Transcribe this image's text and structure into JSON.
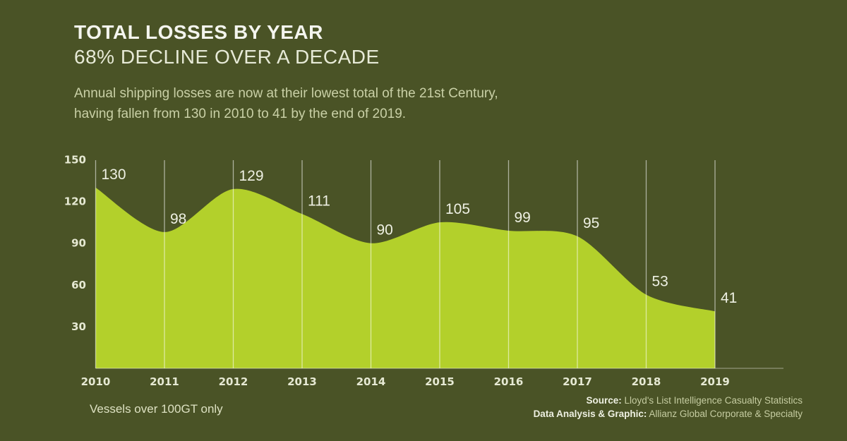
{
  "header": {
    "title": "TOTAL LOSSES BY YEAR",
    "subtitle": "68% DECLINE OVER A DECADE",
    "description_line1": "Annual shipping losses are now at their lowest total of the 21st Century,",
    "description_line2": "having fallen from 130 in 2010 to 41 by the end of 2019."
  },
  "footer": {
    "note": "Vessels over 100GT only",
    "source_label": "Source:",
    "source_text": "Lloyd's List Intelligence Casualty Statistics",
    "credit_label": "Data Analysis & Graphic:",
    "credit_text": "Allianz Global Corporate & Specialty"
  },
  "colors": {
    "background": "#4a5326",
    "area": "#b3d02b",
    "gridline": "rgba(255,255,255,0.55)",
    "baseline": "rgba(255,255,255,0.32)",
    "label_text": "#eef0e3"
  },
  "chart_data": {
    "type": "area",
    "title": "TOTAL LOSSES BY YEAR",
    "subtitle": "68% DECLINE OVER A DECADE",
    "categories": [
      "2010",
      "2011",
      "2012",
      "2013",
      "2014",
      "2015",
      "2016",
      "2017",
      "2018",
      "2019"
    ],
    "values": [
      130,
      98,
      129,
      111,
      90,
      105,
      99,
      95,
      53,
      41
    ],
    "xlabel": "",
    "ylabel": "",
    "ylim": [
      0,
      150
    ],
    "yticks": [
      30,
      60,
      90,
      120,
      150
    ],
    "grid": "vertical",
    "legend": "none",
    "data_labels": true,
    "smoothing": "slight spline"
  }
}
